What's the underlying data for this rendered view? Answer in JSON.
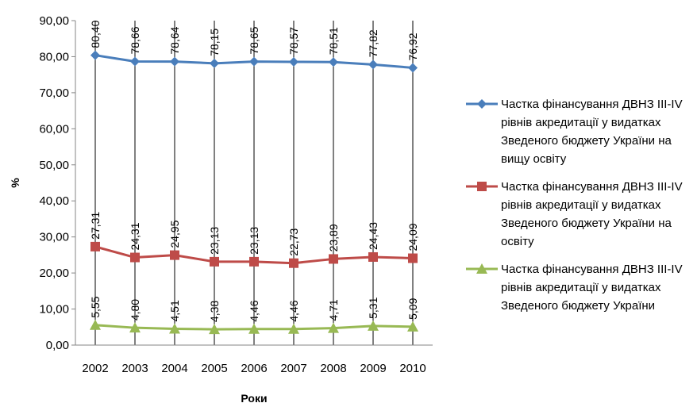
{
  "chart_data": {
    "type": "line",
    "title": "",
    "xlabel": "Роки",
    "ylabel": "%",
    "ylim": [
      0,
      90
    ],
    "yticks": [
      "0,00",
      "10,00",
      "20,00",
      "30,00",
      "40,00",
      "50,00",
      "60,00",
      "70,00",
      "80,00",
      "90,00"
    ],
    "categories": [
      "2002",
      "2003",
      "2004",
      "2005",
      "2006",
      "2007",
      "2008",
      "2009",
      "2010"
    ],
    "grid": "vertical lines at categories",
    "legend_position": "right",
    "series": [
      {
        "name": "Частка фінансування ДВНЗ III-IV рівнів акредитації у видатках Зведеного бюджету України на вищу освіту",
        "color": "#4A7EBB",
        "marker": "diamond",
        "values": [
          80.4,
          78.66,
          78.64,
          78.15,
          78.65,
          78.57,
          78.51,
          77.82,
          76.92
        ],
        "labels": [
          "80,40",
          "78,66",
          "78,64",
          "78,15",
          "78,65",
          "78,57",
          "78,51",
          "77,82",
          "76,92"
        ]
      },
      {
        "name": "Частка фінансування ДВНЗ III-IV рівнів акредитації у видатках Зведеного бюджету України на освіту",
        "color": "#BE4B48",
        "marker": "square",
        "values": [
          27.31,
          24.31,
          24.95,
          23.13,
          23.13,
          22.73,
          23.89,
          24.43,
          24.09
        ],
        "labels": [
          "27,31",
          "24,31",
          "24,95",
          "23,13",
          "23,13",
          "22,73",
          "23,89",
          "24,43",
          "24,09"
        ]
      },
      {
        "name": "Частка фінансування ДВНЗ III-IV рівнів акредитації у видатках Зведеного бюджету України",
        "color": "#98B954",
        "marker": "triangle",
        "values": [
          5.55,
          4.8,
          4.51,
          4.38,
          4.46,
          4.46,
          4.71,
          5.31,
          5.09
        ],
        "labels": [
          "5,55",
          "4,80",
          "4,51",
          "4,38",
          "4,46",
          "4,46",
          "4,71",
          "5,31",
          "5,09"
        ]
      }
    ]
  }
}
